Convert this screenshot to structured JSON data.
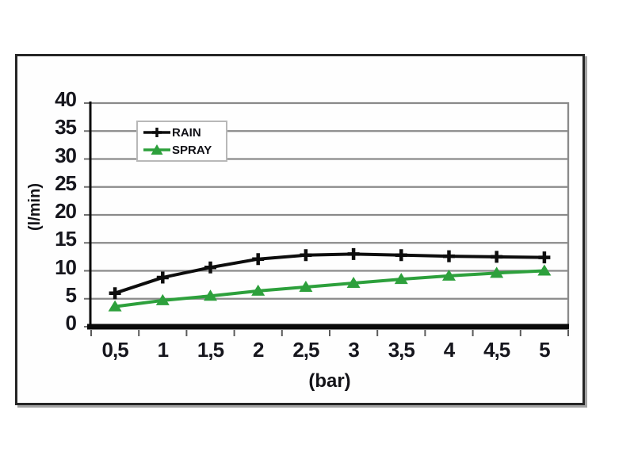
{
  "chart_data": {
    "type": "line",
    "title": "",
    "xlabel": "(bar)",
    "ylabel": "(l/min)",
    "categories": [
      "0,5",
      "1",
      "1,5",
      "2",
      "2,5",
      "3",
      "3,5",
      "4",
      "4,5",
      "5"
    ],
    "x_numeric": [
      0.5,
      1,
      1.5,
      2,
      2.5,
      3,
      3.5,
      4,
      4.5,
      5
    ],
    "ylim": [
      0,
      40
    ],
    "ytick_step": 5,
    "ytick_labels": [
      "0",
      "5",
      "10",
      "15",
      "20",
      "25",
      "30",
      "35",
      "40"
    ],
    "grid": "horizontal",
    "grid_color": "#8a8a8a",
    "axis_color": "#0a0a0a",
    "legend_position": "top-left-inside",
    "series": [
      {
        "name": "RAIN",
        "color": "#0d0d0d",
        "marker": "plus",
        "values": [
          6,
          8.8,
          10.6,
          12.1,
          12.8,
          13,
          12.8,
          12.6,
          12.5,
          12.4
        ]
      },
      {
        "name": "SPRAY",
        "color": "#2da03c",
        "marker": "triangle-up",
        "values": [
          3.6,
          4.7,
          5.5,
          6.4,
          7.1,
          7.8,
          8.5,
          9.1,
          9.6,
          10
        ]
      }
    ]
  }
}
